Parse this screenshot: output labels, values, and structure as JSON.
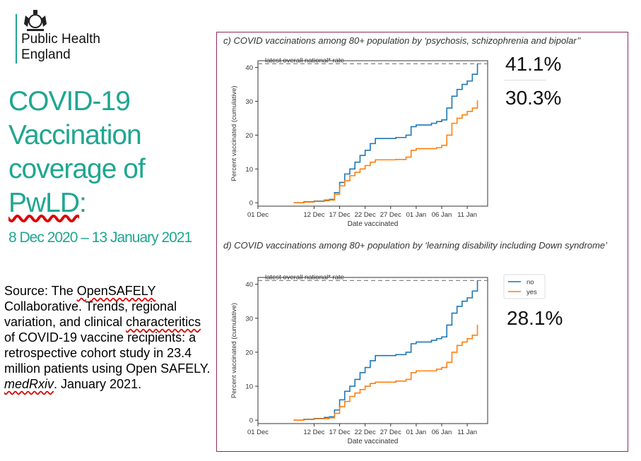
{
  "org": {
    "line1": "Public Health",
    "line2": "England"
  },
  "title": {
    "part1": "COVID-19 Vaccination coverage of ",
    "part2": "PwLD",
    "part3": ":"
  },
  "date_range": "8 Dec 2020 – 13 January 2021",
  "source": {
    "t1": "Source: The ",
    "t2": "OpenSAFELY",
    "t3": " Collaborative. Trends, regional variation, and clinical ",
    "t4": "characteritics",
    "t5": " of COVID-19 vaccine recipients: a retrospective cohort study in 23.4 million patients using Open SAFELY. ",
    "t6": "medRxiv",
    "t7": ". January 2021."
  },
  "colors": {
    "teal": "#1fa691",
    "frame": "#8e2a5e",
    "no": "#1f77b4",
    "yes": "#ff7f0e",
    "ref": "#777777"
  },
  "callouts": {
    "c_no": "41.1%",
    "c_yes": "30.3%",
    "d_yes": "28.1%"
  },
  "chart_data": [
    {
      "type": "line",
      "title": "c) COVID vaccinations among 80+ population by ‘psychosis, schizophrenia and bipolar’’",
      "xlabel": "Date vaccinated",
      "ylabel": "Percent vaccinated (cumulative)",
      "x_ticks": [
        "01 Dec",
        "12 Dec",
        "17 Dec",
        "22 Dec",
        "27 Dec",
        "01 Jan",
        "06 Jan",
        "11 Jan"
      ],
      "y_ticks": [
        0,
        10,
        20,
        30,
        40
      ],
      "ylim": [
        -1,
        42
      ],
      "reference_line": {
        "label": "latest overall national* rate",
        "value": 41.1
      },
      "x_dates": [
        "2020-12-08",
        "2020-12-10",
        "2020-12-12",
        "2020-12-14",
        "2020-12-15",
        "2020-12-16",
        "2020-12-17",
        "2020-12-18",
        "2020-12-19",
        "2020-12-20",
        "2020-12-21",
        "2020-12-22",
        "2020-12-23",
        "2020-12-24",
        "2020-12-25",
        "2020-12-28",
        "2020-12-30",
        "2020-12-31",
        "2021-01-01",
        "2021-01-04",
        "2021-01-05",
        "2021-01-06",
        "2021-01-07",
        "2021-01-08",
        "2021-01-09",
        "2021-01-10",
        "2021-01-11",
        "2021-01-12",
        "2021-01-13"
      ],
      "series": [
        {
          "name": "no",
          "values": [
            0,
            0.3,
            0.5,
            0.8,
            1,
            3,
            6,
            8.5,
            10,
            12,
            14,
            15.5,
            17.5,
            19,
            19,
            19.3,
            20,
            22.5,
            23,
            23.5,
            24,
            24.5,
            28,
            31.5,
            33.5,
            35,
            36,
            38,
            41.1
          ]
        },
        {
          "name": "yes",
          "values": [
            0,
            0.2,
            0.4,
            0.6,
            0.8,
            2.5,
            5,
            6.5,
            8,
            9,
            10,
            11,
            12,
            12.7,
            12.7,
            12.8,
            13.5,
            15.5,
            16,
            16,
            16.3,
            17,
            20,
            23.5,
            25,
            26,
            27,
            28,
            30.3
          ]
        }
      ]
    },
    {
      "type": "line",
      "title": "d) COVID vaccinations among 80+ population by ‘learning disability including Down syndrome’",
      "xlabel": "Date vaccinated",
      "ylabel": "Percent vaccinated (cumulative)",
      "x_ticks": [
        "01 Dec",
        "12 Dec",
        "17 Dec",
        "22 Dec",
        "27 Dec",
        "01 Jan",
        "06 Jan",
        "11 Jan"
      ],
      "y_ticks": [
        0,
        10,
        20,
        30,
        40
      ],
      "ylim": [
        -1,
        42
      ],
      "reference_line": {
        "label": "latest overall national* rate",
        "value": 41.1
      },
      "legend": {
        "position": "outside-right",
        "entries": [
          "no",
          "yes"
        ]
      },
      "x_dates": [
        "2020-12-08",
        "2020-12-10",
        "2020-12-12",
        "2020-12-14",
        "2020-12-15",
        "2020-12-16",
        "2020-12-17",
        "2020-12-18",
        "2020-12-19",
        "2020-12-20",
        "2020-12-21",
        "2020-12-22",
        "2020-12-23",
        "2020-12-24",
        "2020-12-25",
        "2020-12-28",
        "2020-12-30",
        "2020-12-31",
        "2021-01-01",
        "2021-01-04",
        "2021-01-05",
        "2021-01-06",
        "2021-01-07",
        "2021-01-08",
        "2021-01-09",
        "2021-01-10",
        "2021-01-11",
        "2021-01-12",
        "2021-01-13"
      ],
      "series": [
        {
          "name": "no",
          "values": [
            0,
            0.3,
            0.5,
            0.8,
            1,
            3,
            6,
            8.5,
            10,
            12,
            14,
            15.5,
            17.5,
            19,
            19,
            19.3,
            20,
            22.5,
            23,
            23.5,
            24,
            24.5,
            28,
            31.5,
            33.5,
            35,
            36,
            38,
            41.1
          ]
        },
        {
          "name": "yes",
          "values": [
            0,
            0.2,
            0.4,
            0.5,
            0.7,
            2,
            4,
            5.5,
            7,
            8,
            9,
            10,
            10.8,
            11.2,
            11.2,
            11.5,
            12,
            14,
            14.5,
            14.5,
            15,
            15.5,
            17,
            20,
            22,
            23,
            24,
            25,
            28.1
          ]
        }
      ]
    }
  ]
}
